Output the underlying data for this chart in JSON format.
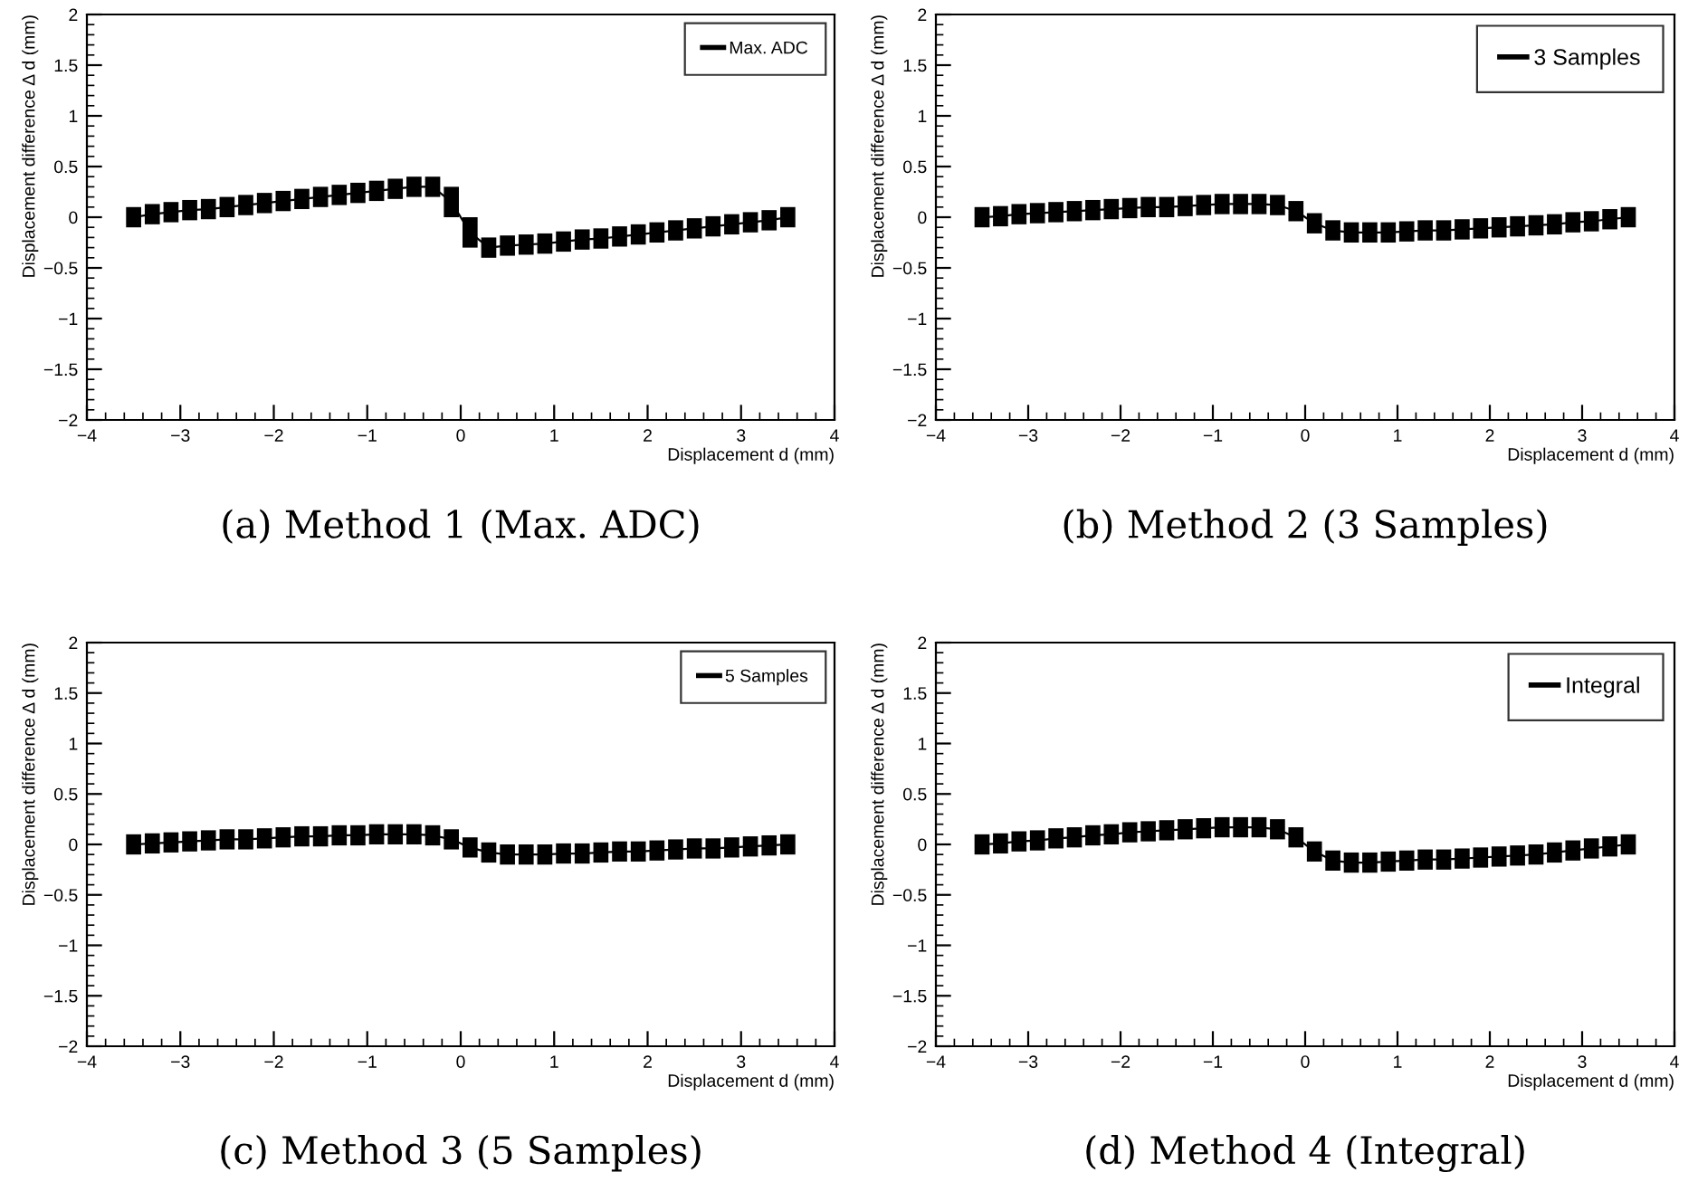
{
  "chart_data": [
    {
      "type": "line",
      "xlabel": "Displacement d (mm)",
      "ylabel": "Displacement difference Δ d (mm)",
      "xlim": [
        -4,
        4
      ],
      "ylim": [
        -2,
        2
      ],
      "xticks": [
        -4,
        -3,
        -2,
        -1,
        0,
        1,
        2,
        3,
        4
      ],
      "yticks": [
        -2,
        -1.5,
        -1,
        -0.5,
        0,
        0.5,
        1,
        1.5,
        2
      ],
      "legend": "top right",
      "grid": false,
      "marker": "none",
      "annotations": [
        "(a) Method 1 (Max. ADC)"
      ],
      "x": [
        -3.5,
        -3.3,
        -3.1,
        -2.9,
        -2.7,
        -2.5,
        -2.3,
        -2.1,
        -1.9,
        -1.7,
        -1.5,
        -1.3,
        -1.1,
        -0.9,
        -0.7,
        -0.5,
        -0.3,
        -0.1,
        0.1,
        0.3,
        0.5,
        0.7,
        0.9,
        1.1,
        1.3,
        1.5,
        1.7,
        1.9,
        2.1,
        2.3,
        2.5,
        2.7,
        2.9,
        3.1,
        3.3,
        3.5
      ],
      "series": [
        {
          "name": "Max. ADC",
          "color": "#000000",
          "values": [
            0.0,
            0.03,
            0.05,
            0.07,
            0.08,
            0.1,
            0.12,
            0.14,
            0.16,
            0.18,
            0.2,
            0.22,
            0.24,
            0.26,
            0.28,
            0.3,
            0.3,
            0.15,
            -0.15,
            -0.3,
            -0.28,
            -0.27,
            -0.26,
            -0.24,
            -0.22,
            -0.21,
            -0.19,
            -0.17,
            -0.15,
            -0.13,
            -0.11,
            -0.09,
            -0.07,
            -0.05,
            -0.03,
            0.0
          ],
          "errors": [
            0.1,
            0.1,
            0.1,
            0.1,
            0.1,
            0.1,
            0.1,
            0.1,
            0.1,
            0.1,
            0.1,
            0.1,
            0.1,
            0.1,
            0.1,
            0.1,
            0.1,
            0.15,
            0.15,
            0.1,
            0.1,
            0.1,
            0.1,
            0.1,
            0.1,
            0.1,
            0.1,
            0.1,
            0.1,
            0.1,
            0.1,
            0.1,
            0.1,
            0.1,
            0.1,
            0.1
          ]
        }
      ]
    },
    {
      "type": "line",
      "xlabel": "Displacement d (mm)",
      "ylabel": "Displacement difference Δ d (mm)",
      "xlim": [
        -4,
        4
      ],
      "ylim": [
        -2,
        2
      ],
      "xticks": [
        -4,
        -3,
        -2,
        -1,
        0,
        1,
        2,
        3,
        4
      ],
      "yticks": [
        -2,
        -1.5,
        -1,
        -0.5,
        0,
        0.5,
        1,
        1.5,
        2
      ],
      "legend": "top right",
      "grid": false,
      "marker": "none",
      "annotations": [
        "(b) Method 2 (3 Samples)"
      ],
      "x": [
        -3.5,
        -3.3,
        -3.1,
        -2.9,
        -2.7,
        -2.5,
        -2.3,
        -2.1,
        -1.9,
        -1.7,
        -1.5,
        -1.3,
        -1.1,
        -0.9,
        -0.7,
        -0.5,
        -0.3,
        -0.1,
        0.1,
        0.3,
        0.5,
        0.7,
        0.9,
        1.1,
        1.3,
        1.5,
        1.7,
        1.9,
        2.1,
        2.3,
        2.5,
        2.7,
        2.9,
        3.1,
        3.3,
        3.5
      ],
      "series": [
        {
          "name": "3 Samples",
          "color": "#000000",
          "values": [
            0.0,
            0.01,
            0.03,
            0.04,
            0.05,
            0.06,
            0.07,
            0.08,
            0.09,
            0.1,
            0.1,
            0.11,
            0.12,
            0.13,
            0.13,
            0.13,
            0.12,
            0.06,
            -0.06,
            -0.13,
            -0.15,
            -0.15,
            -0.15,
            -0.14,
            -0.13,
            -0.13,
            -0.12,
            -0.11,
            -0.1,
            -0.09,
            -0.08,
            -0.07,
            -0.05,
            -0.04,
            -0.02,
            0.0
          ],
          "errors": [
            0.1,
            0.1,
            0.1,
            0.1,
            0.1,
            0.1,
            0.1,
            0.1,
            0.1,
            0.1,
            0.1,
            0.1,
            0.1,
            0.1,
            0.1,
            0.1,
            0.1,
            0.1,
            0.1,
            0.1,
            0.1,
            0.1,
            0.1,
            0.1,
            0.1,
            0.1,
            0.1,
            0.1,
            0.1,
            0.1,
            0.1,
            0.1,
            0.1,
            0.1,
            0.1,
            0.1
          ]
        }
      ]
    },
    {
      "type": "line",
      "xlabel": "Displacement d (mm)",
      "ylabel": "Displacement difference Δ d (mm)",
      "xlim": [
        -4,
        4
      ],
      "ylim": [
        -2,
        2
      ],
      "xticks": [
        -4,
        -3,
        -2,
        -1,
        0,
        1,
        2,
        3,
        4
      ],
      "yticks": [
        -2,
        -1.5,
        -1,
        -0.5,
        0,
        0.5,
        1,
        1.5,
        2
      ],
      "legend": "top right",
      "grid": false,
      "marker": "none",
      "annotations": [
        "(c) Method 3 (5 Samples)"
      ],
      "x": [
        -3.5,
        -3.3,
        -3.1,
        -2.9,
        -2.7,
        -2.5,
        -2.3,
        -2.1,
        -1.9,
        -1.7,
        -1.5,
        -1.3,
        -1.1,
        -0.9,
        -0.7,
        -0.5,
        -0.3,
        -0.1,
        0.1,
        0.3,
        0.5,
        0.7,
        0.9,
        1.1,
        1.3,
        1.5,
        1.7,
        1.9,
        2.1,
        2.3,
        2.5,
        2.7,
        2.9,
        3.1,
        3.3,
        3.5
      ],
      "series": [
        {
          "name": "5 Samples",
          "color": "#000000",
          "values": [
            0.0,
            0.01,
            0.02,
            0.03,
            0.04,
            0.05,
            0.05,
            0.06,
            0.07,
            0.08,
            0.08,
            0.09,
            0.09,
            0.1,
            0.1,
            0.1,
            0.09,
            0.05,
            -0.03,
            -0.08,
            -0.1,
            -0.1,
            -0.1,
            -0.09,
            -0.09,
            -0.08,
            -0.07,
            -0.07,
            -0.06,
            -0.05,
            -0.04,
            -0.04,
            -0.03,
            -0.02,
            -0.01,
            0.0
          ],
          "errors": [
            0.1,
            0.1,
            0.1,
            0.1,
            0.1,
            0.1,
            0.1,
            0.1,
            0.1,
            0.1,
            0.1,
            0.1,
            0.1,
            0.1,
            0.1,
            0.1,
            0.1,
            0.1,
            0.1,
            0.1,
            0.1,
            0.1,
            0.1,
            0.1,
            0.1,
            0.1,
            0.1,
            0.1,
            0.1,
            0.1,
            0.1,
            0.1,
            0.1,
            0.1,
            0.1,
            0.1
          ]
        }
      ]
    },
    {
      "type": "line",
      "xlabel": "Displacement d (mm)",
      "ylabel": "Displacement difference Δ d (mm)",
      "xlim": [
        -4,
        4
      ],
      "ylim": [
        -2,
        2
      ],
      "xticks": [
        -4,
        -3,
        -2,
        -1,
        0,
        1,
        2,
        3,
        4
      ],
      "yticks": [
        -2,
        -1.5,
        -1,
        -0.5,
        0,
        0.5,
        1,
        1.5,
        2
      ],
      "legend": "top right",
      "grid": false,
      "marker": "none",
      "annotations": [
        "(d) Method 4 (Integral)"
      ],
      "x": [
        -3.5,
        -3.3,
        -3.1,
        -2.9,
        -2.7,
        -2.5,
        -2.3,
        -2.1,
        -1.9,
        -1.7,
        -1.5,
        -1.3,
        -1.1,
        -0.9,
        -0.7,
        -0.5,
        -0.3,
        -0.1,
        0.1,
        0.3,
        0.5,
        0.7,
        0.9,
        1.1,
        1.3,
        1.5,
        1.7,
        1.9,
        2.1,
        2.3,
        2.5,
        2.7,
        2.9,
        3.1,
        3.3,
        3.5
      ],
      "series": [
        {
          "name": "Integral",
          "color": "#000000",
          "values": [
            0.0,
            0.01,
            0.03,
            0.04,
            0.06,
            0.07,
            0.09,
            0.1,
            0.12,
            0.13,
            0.14,
            0.15,
            0.16,
            0.17,
            0.17,
            0.17,
            0.15,
            0.07,
            -0.07,
            -0.16,
            -0.18,
            -0.18,
            -0.17,
            -0.16,
            -0.15,
            -0.15,
            -0.14,
            -0.13,
            -0.12,
            -0.11,
            -0.1,
            -0.08,
            -0.06,
            -0.04,
            -0.02,
            0.0
          ],
          "errors": [
            0.1,
            0.1,
            0.1,
            0.1,
            0.1,
            0.1,
            0.1,
            0.1,
            0.1,
            0.1,
            0.1,
            0.1,
            0.1,
            0.1,
            0.1,
            0.1,
            0.1,
            0.1,
            0.1,
            0.1,
            0.1,
            0.1,
            0.1,
            0.1,
            0.1,
            0.1,
            0.1,
            0.1,
            0.1,
            0.1,
            0.1,
            0.1,
            0.1,
            0.1,
            0.1,
            0.1
          ]
        }
      ]
    }
  ]
}
